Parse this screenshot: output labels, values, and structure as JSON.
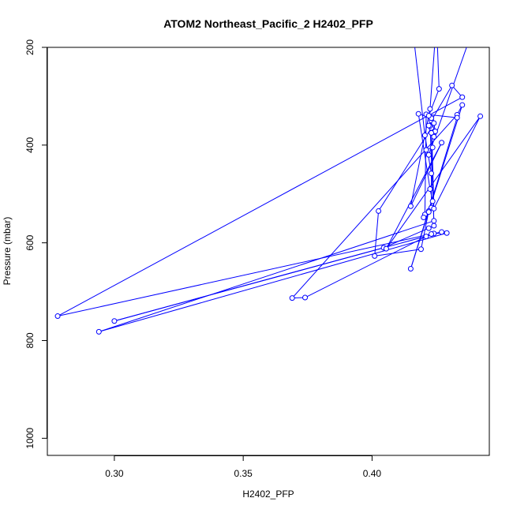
{
  "chart_data": {
    "type": "line",
    "title": "ATOM2 Northeast_Pacific_2 H2402_PFP",
    "xlabel": "H2402_PFP",
    "ylabel": "Pressure (mbar)",
    "xlim": [
      0.274,
      0.4455
    ],
    "ylim": [
      1035,
      200
    ],
    "y_inverted": true,
    "x_ticks": [
      0.3,
      0.35,
      0.4
    ],
    "x_tick_labels": [
      "0.30",
      "0.35",
      "0.40"
    ],
    "y_ticks": [
      200,
      400,
      600,
      800,
      1000
    ],
    "y_tick_labels": [
      "200",
      "400",
      "600",
      "800",
      "1000"
    ],
    "grid": false,
    "series": [
      {
        "color": "#0000ff",
        "marker": "open-circle",
        "points": [
          [
            0.4155,
            150
          ],
          [
            0.4205,
            380
          ],
          [
            0.423,
            458
          ],
          [
            0.423,
            528
          ],
          [
            0.422,
            535
          ],
          [
            0.419,
            613
          ],
          [
            0.401,
            627
          ],
          [
            0.4025,
            535
          ],
          [
            0.423,
            365
          ],
          [
            0.424,
            565
          ],
          [
            0.422,
            570
          ],
          [
            0.4045,
            610
          ],
          [
            0.3,
            760
          ],
          [
            0.427,
            578
          ],
          [
            0.424,
            581
          ],
          [
            0.429,
            580
          ],
          [
            0.294,
            782
          ],
          [
            0.424,
            555
          ],
          [
            0.4225,
            361
          ],
          [
            0.423,
            350
          ],
          [
            0.431,
            278
          ],
          [
            0.435,
            302
          ],
          [
            0.278,
            750
          ],
          [
            0.423,
            582
          ],
          [
            0.421,
            587
          ],
          [
            0.374,
            712
          ],
          [
            0.369,
            713
          ],
          [
            0.433,
            338
          ],
          [
            0.435,
            318
          ],
          [
            0.415,
            653
          ],
          [
            0.433,
            344
          ],
          [
            0.421,
            337
          ],
          [
            0.4205,
            542
          ],
          [
            0.422,
            537
          ],
          [
            0.42,
            548
          ],
          [
            0.4235,
            515
          ],
          [
            0.4225,
            490
          ],
          [
            0.418,
            336
          ],
          [
            0.423,
            345
          ],
          [
            0.424,
            530
          ],
          [
            0.442,
            341
          ],
          [
            0.4055,
            612
          ],
          [
            0.427,
            395
          ],
          [
            0.415,
            525
          ],
          [
            0.4225,
            326
          ],
          [
            0.425,
            145
          ],
          [
            0.426,
            285
          ],
          [
            0.422,
            340
          ],
          [
            0.424,
            355
          ],
          [
            0.4245,
            372
          ],
          [
            0.424,
            383
          ],
          [
            0.422,
            360
          ],
          [
            0.423,
            375
          ],
          [
            0.4235,
            405
          ],
          [
            0.421,
            410
          ],
          [
            0.422,
            420
          ],
          [
            0.44,
            150
          ],
          [
            0.435,
            170
          ],
          [
            0.421,
            150
          ]
        ]
      }
    ]
  }
}
